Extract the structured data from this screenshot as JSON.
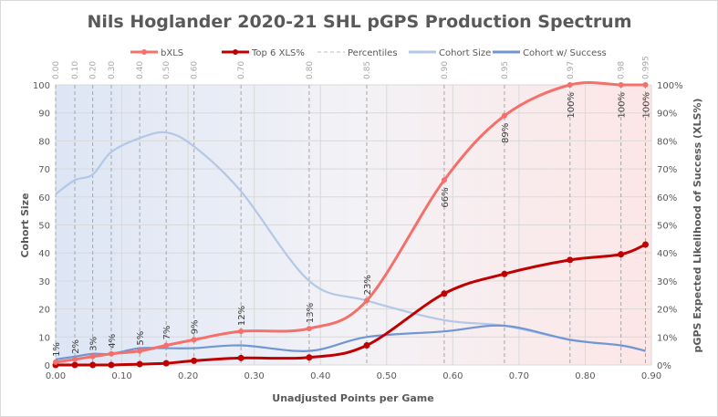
{
  "chart_data": {
    "type": "line",
    "title": "Nils Hoglander 2020-21 SHL pGPS Production Spectrum",
    "xlabel": "Unadjusted Points per Game",
    "ylabel": "Cohort Size",
    "y2label": "pGPS Expected Likelihood of Success (XLS%)",
    "xlim": [
      0,
      0.9
    ],
    "ylim": [
      0,
      100
    ],
    "y2lim": [
      0,
      100
    ],
    "x_ticks": [
      "0.00",
      "0.10",
      "0.20",
      "0.30",
      "0.40",
      "0.50",
      "0.60",
      "0.70",
      "0.80",
      "0.90"
    ],
    "y_ticks": [
      "0",
      "10",
      "20",
      "30",
      "40",
      "50",
      "60",
      "70",
      "80",
      "90",
      "100"
    ],
    "y2_ticks": [
      "0%",
      "10%",
      "20%",
      "30%",
      "40%",
      "50%",
      "60%",
      "70%",
      "80%",
      "90%",
      "100%"
    ],
    "percentiles": {
      "labels": [
        "0.00",
        "0.10",
        "0.20",
        "0.30",
        "0.40",
        "0.50",
        "0.60",
        "0.70",
        "0.80",
        "0.85",
        "0.90",
        "0.95",
        "0.97",
        "0.98",
        "0.995"
      ],
      "x": [
        0.0,
        0.029,
        0.056,
        0.084,
        0.127,
        0.167,
        0.209,
        0.28,
        0.383,
        0.47,
        0.587,
        0.678,
        0.777,
        0.854,
        0.891
      ]
    },
    "series": [
      {
        "name": "bXLS",
        "color": "#f4706b",
        "axis": "y2",
        "values": [
          1,
          2,
          3,
          4,
          5,
          7,
          9,
          12,
          13,
          23,
          66,
          89,
          100,
          100,
          100
        ],
        "labels": [
          "1%",
          "2%",
          "3%",
          "4%",
          "5%",
          "7%",
          "9%",
          "12%",
          "13%",
          "23%",
          "66%",
          "89%",
          "100%",
          "100%",
          "100%"
        ]
      },
      {
        "name": "Top 6 XLS%",
        "color": "#c00000",
        "axis": "y2",
        "values": [
          0,
          0,
          0,
          0,
          0.3,
          0.6,
          1.5,
          2.5,
          2.7,
          7,
          25.5,
          32.5,
          37.5,
          39.5,
          43
        ]
      },
      {
        "name": "Percentiles",
        "color": "#bfbfbf"
      },
      {
        "name": "Cohort Size",
        "color": "#b4c7e7",
        "axis": "y",
        "values": [
          61,
          66,
          68,
          76,
          81,
          83,
          78,
          62,
          30,
          23,
          16,
          14,
          9,
          7,
          5
        ]
      },
      {
        "name": "Cohort w/ Success",
        "color": "#7096d4",
        "axis": "y",
        "values": [
          2,
          3,
          4,
          4,
          6,
          6,
          6,
          7,
          5,
          10,
          12,
          14,
          9,
          7,
          5
        ]
      }
    ]
  }
}
